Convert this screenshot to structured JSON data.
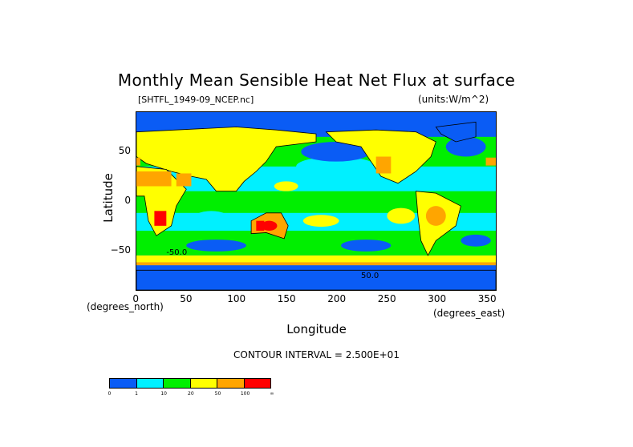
{
  "chart_data": {
    "type": "heatmap",
    "title": "Monthly Mean Sensible Heat Net Flux at surface",
    "source_file": "[SHTFL_1949-09_NCEP.nc]",
    "units": "(units:W/m^2)",
    "xlabel": "Longitude",
    "ylabel": "Latitude",
    "x_unit_label": "(degrees_east)",
    "y_unit_label": "(degrees_north)",
    "xlim": [
      0,
      360
    ],
    "ylim": [
      -90,
      90
    ],
    "x_ticks": [
      "0",
      "50",
      "100",
      "150",
      "200",
      "250",
      "300",
      "350"
    ],
    "y_ticks": [
      "50",
      "0",
      "-50"
    ],
    "contour_interval": "CONTOUR INTERVAL = 2.500E+01",
    "contour_labels": [
      "-50.0",
      "50.0"
    ],
    "colorbar": {
      "boundaries": [
        "0",
        "1",
        "10",
        "20",
        "50",
        "100",
        "∞"
      ],
      "colors": [
        "#0a5cf5",
        "#00f0ff",
        "#00ef00",
        "#ffff00",
        "#ffa500",
        "#ff0000"
      ]
    }
  }
}
